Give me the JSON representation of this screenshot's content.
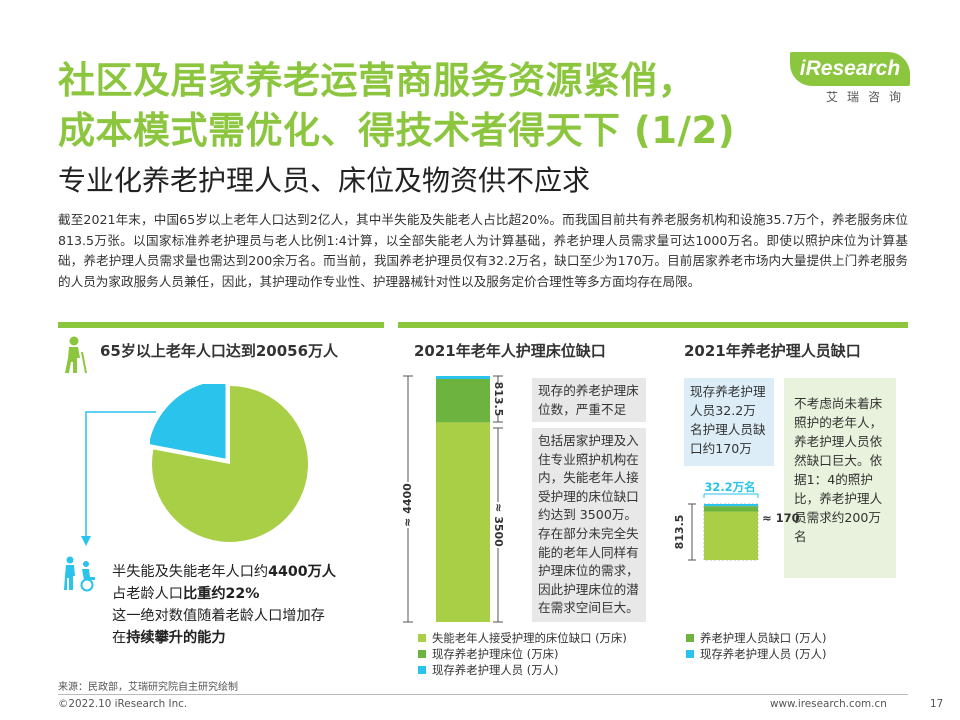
{
  "header": {
    "title_line1": "社区及居家养老运营商服务资源紧俏，",
    "title_line2": "成本模式需优化、得技术者得天下 (1/2)",
    "subtitle": "专业化养老护理人员、床位及物资供不应求",
    "logo_text": "iResearch",
    "logo_sub": "艾瑞咨询"
  },
  "intro": "截至2021年末，中国65岁以上老年人口达到2亿人，其中半失能及失能老人占比超20%。而我国目前共有养老服务机构和设施35.7万个，养老服务床位813.5万张。以国家标准养老护理员与老人比例1:4计算，以全部失能老人为计算基础，养老护理人员需求量可达1000万名。即使以照护床位为计算基础，养老护理人员需求量也需达到200余万名。而当前，我国养老护理员仅有32.2万名，缺口至少为170万。目前居家养老市场内大量提供上门养老服务的人员为家政服务人员兼任，因此，其护理动作专业性、护理器械针对性以及服务定价合理性等多方面均存在局限。",
  "left_panel": {
    "heading": "65岁以上老年人口达到20056万人",
    "stat_line1_pre": "半失能及失能老年人口约",
    "stat_line1_bold": "4400万人",
    "stat_line2_pre": "占老龄人口",
    "stat_line2_bold": "比重约22%",
    "stat_line3": "这一绝对数值随着老龄人口增加存",
    "stat_line4_pre": "在",
    "stat_line4_bold": "持续攀升的能力",
    "pie_share_percent": 22,
    "colors": {
      "major": "#a8cf45",
      "minor": "#29c3ec"
    },
    "icons": [
      "elderly-person-icon",
      "wheelchair-caregiver-icon"
    ]
  },
  "bed_panel": {
    "heading": "2021年老年人护理床位缺口",
    "total_label": "≈ 4400",
    "existing_label": "813.5",
    "gap_label": "≈ 3500",
    "note_existing": "现存的养老护理床位数，严重不足",
    "note_gap": "包括居家护理及入住专业照护机构在内，失能老年人接受护理的床位缺口约达到 3500万。存在部分未完全失能的老年人同样有护理床位的需求，因此护理床位的潜在需求空间巨大。",
    "legend": [
      {
        "label": "失能老年人接受护理的床位缺口 (万床)",
        "color": "#a8cf45"
      },
      {
        "label": "现存养老护理床位 (万床)",
        "color": "#6db33f"
      },
      {
        "label": "现存养老护理人员 (万人)",
        "color": "#29c3ec"
      }
    ],
    "chart_data": {
      "type": "bar",
      "stacked": true,
      "categories": [
        ""
      ],
      "series": [
        {
          "name": "失能老年人接受护理的床位缺口 (万床)",
          "values": [
            3500
          ]
        },
        {
          "name": "现存养老护理床位 (万床)",
          "values": [
            813.5
          ]
        },
        {
          "name": "现存养老护理人员 (万人)",
          "values": [
            32.2
          ]
        }
      ]
    }
  },
  "staff_panel": {
    "heading": "2021年养老护理人员缺口",
    "blue_note": "现存养老护理人员32.2万名护理人员缺口约170万",
    "green_note": "不考虑尚未着床照护的老年人，养老护理人员依然缺口巨大。依据1：4的照护比，养老护理人员需求约200万名",
    "existing_label": "32.2万名",
    "gap_label": "≈ 170",
    "total_label": "813.5",
    "legend": [
      {
        "label": "养老护理人员缺口 (万人)",
        "color": "#6db33f"
      },
      {
        "label": "现存养老护理人员 (万人)",
        "color": "#29c3ec"
      }
    ],
    "chart_data": {
      "type": "bar",
      "stacked": true,
      "categories": [
        ""
      ],
      "series": [
        {
          "name": "养老护理人员缺口 (万人)",
          "values": [
            170
          ]
        },
        {
          "name": "现存养老护理人员 (万人)",
          "values": [
            32.2
          ]
        }
      ]
    }
  },
  "footer": {
    "source": "来源：民政部，艾瑞研究院自主研究绘制",
    "copyright": "©2022.10 iResearch Inc.",
    "website": "www.iresearch.com.cn",
    "page": "17"
  }
}
